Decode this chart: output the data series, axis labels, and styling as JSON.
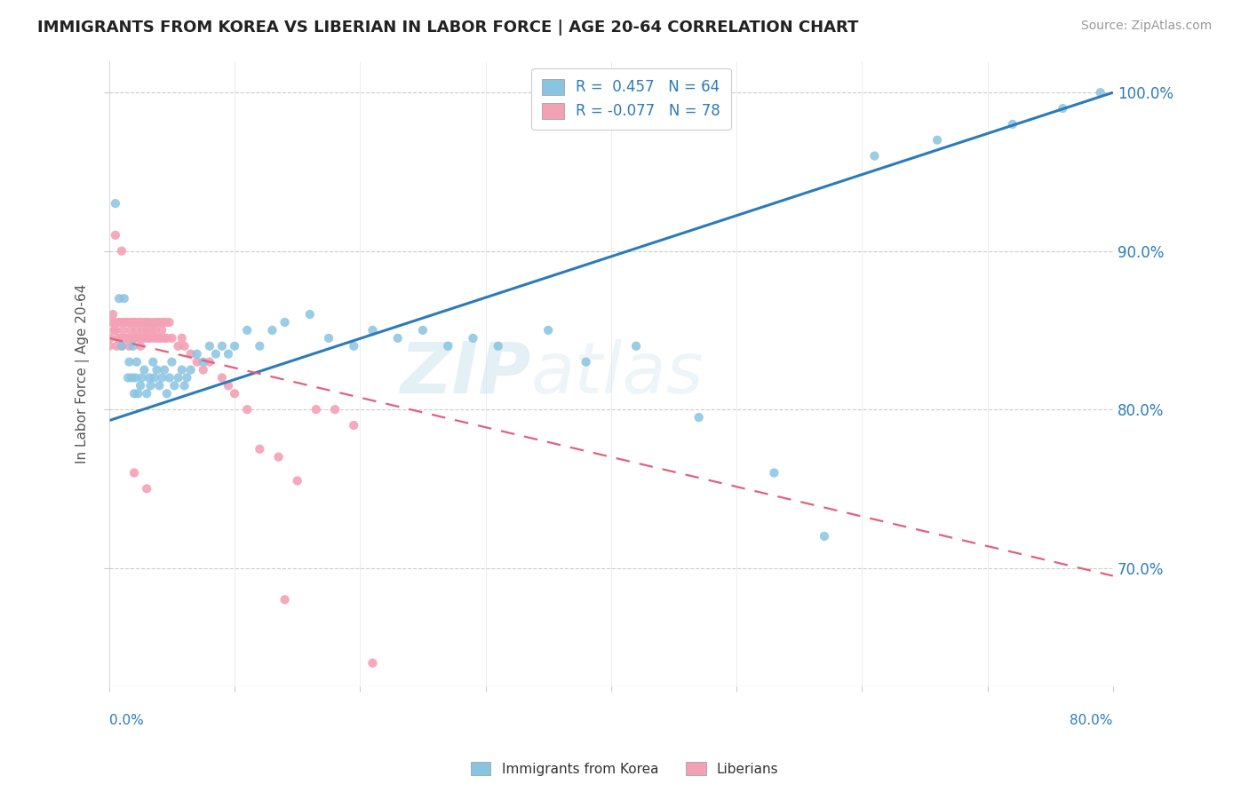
{
  "title": "IMMIGRANTS FROM KOREA VS LIBERIAN IN LABOR FORCE | AGE 20-64 CORRELATION CHART",
  "source": "Source: ZipAtlas.com",
  "ylabel": "In Labor Force | Age 20-64",
  "ylabel_right_ticks": [
    "70.0%",
    "80.0%",
    "90.0%",
    "100.0%"
  ],
  "ylabel_right_vals": [
    0.7,
    0.8,
    0.9,
    1.0
  ],
  "xmin": 0.0,
  "xmax": 0.8,
  "ymin": 0.625,
  "ymax": 1.02,
  "legend_korea_r": "0.457",
  "legend_korea_n": "64",
  "legend_liberia_r": "-0.077",
  "legend_liberia_n": "78",
  "blue_color": "#89c4e1",
  "pink_color": "#f4a0b5",
  "blue_line_color": "#2b7bba",
  "pink_line_color": "#e06080",
  "watermark_zip": "ZIP",
  "watermark_atlas": "atlas",
  "korea_x": [
    0.005,
    0.008,
    0.01,
    0.012,
    0.015,
    0.016,
    0.018,
    0.019,
    0.02,
    0.021,
    0.022,
    0.023,
    0.025,
    0.026,
    0.028,
    0.03,
    0.032,
    0.033,
    0.035,
    0.036,
    0.038,
    0.04,
    0.042,
    0.044,
    0.046,
    0.048,
    0.05,
    0.052,
    0.055,
    0.058,
    0.06,
    0.062,
    0.065,
    0.07,
    0.075,
    0.08,
    0.085,
    0.09,
    0.095,
    0.1,
    0.11,
    0.12,
    0.13,
    0.14,
    0.16,
    0.175,
    0.195,
    0.21,
    0.23,
    0.25,
    0.27,
    0.29,
    0.31,
    0.35,
    0.38,
    0.42,
    0.47,
    0.53,
    0.57,
    0.61,
    0.66,
    0.72,
    0.76,
    0.79
  ],
  "korea_y": [
    0.93,
    0.87,
    0.84,
    0.87,
    0.82,
    0.83,
    0.82,
    0.84,
    0.81,
    0.82,
    0.83,
    0.81,
    0.815,
    0.82,
    0.825,
    0.81,
    0.82,
    0.815,
    0.83,
    0.82,
    0.825,
    0.815,
    0.82,
    0.825,
    0.81,
    0.82,
    0.83,
    0.815,
    0.82,
    0.825,
    0.815,
    0.82,
    0.825,
    0.835,
    0.83,
    0.84,
    0.835,
    0.84,
    0.835,
    0.84,
    0.85,
    0.84,
    0.85,
    0.855,
    0.86,
    0.845,
    0.84,
    0.85,
    0.845,
    0.85,
    0.84,
    0.845,
    0.84,
    0.85,
    0.83,
    0.84,
    0.795,
    0.76,
    0.72,
    0.96,
    0.97,
    0.98,
    0.99,
    1.0
  ],
  "liberia_x": [
    0.0,
    0.001,
    0.002,
    0.003,
    0.004,
    0.005,
    0.005,
    0.006,
    0.007,
    0.008,
    0.009,
    0.01,
    0.01,
    0.011,
    0.012,
    0.013,
    0.014,
    0.015,
    0.015,
    0.016,
    0.017,
    0.018,
    0.019,
    0.02,
    0.02,
    0.021,
    0.022,
    0.023,
    0.024,
    0.025,
    0.025,
    0.026,
    0.027,
    0.028,
    0.029,
    0.03,
    0.03,
    0.031,
    0.032,
    0.033,
    0.034,
    0.035,
    0.036,
    0.037,
    0.038,
    0.039,
    0.04,
    0.041,
    0.042,
    0.043,
    0.044,
    0.045,
    0.046,
    0.048,
    0.05,
    0.055,
    0.058,
    0.06,
    0.065,
    0.07,
    0.075,
    0.08,
    0.09,
    0.095,
    0.1,
    0.11,
    0.12,
    0.135,
    0.15,
    0.165,
    0.18,
    0.195,
    0.21,
    0.005,
    0.01,
    0.02,
    0.03,
    0.14
  ],
  "liberia_y": [
    0.84,
    0.845,
    0.855,
    0.86,
    0.85,
    0.85,
    0.855,
    0.84,
    0.845,
    0.855,
    0.845,
    0.855,
    0.84,
    0.85,
    0.855,
    0.845,
    0.855,
    0.845,
    0.855,
    0.84,
    0.85,
    0.855,
    0.845,
    0.855,
    0.845,
    0.855,
    0.85,
    0.845,
    0.855,
    0.84,
    0.855,
    0.845,
    0.85,
    0.855,
    0.845,
    0.85,
    0.855,
    0.845,
    0.855,
    0.845,
    0.85,
    0.855,
    0.845,
    0.85,
    0.855,
    0.845,
    0.855,
    0.845,
    0.85,
    0.855,
    0.845,
    0.855,
    0.845,
    0.855,
    0.845,
    0.84,
    0.845,
    0.84,
    0.835,
    0.83,
    0.825,
    0.83,
    0.82,
    0.815,
    0.81,
    0.8,
    0.775,
    0.77,
    0.755,
    0.8,
    0.8,
    0.79,
    0.64,
    0.91,
    0.9,
    0.76,
    0.75,
    0.68
  ],
  "korea_trend_x0": 0.0,
  "korea_trend_y0": 0.793,
  "korea_trend_x1": 0.8,
  "korea_trend_y1": 1.0,
  "liberia_trend_x0": 0.0,
  "liberia_trend_y0": 0.845,
  "liberia_trend_x1": 0.8,
  "liberia_trend_y1": 0.695
}
